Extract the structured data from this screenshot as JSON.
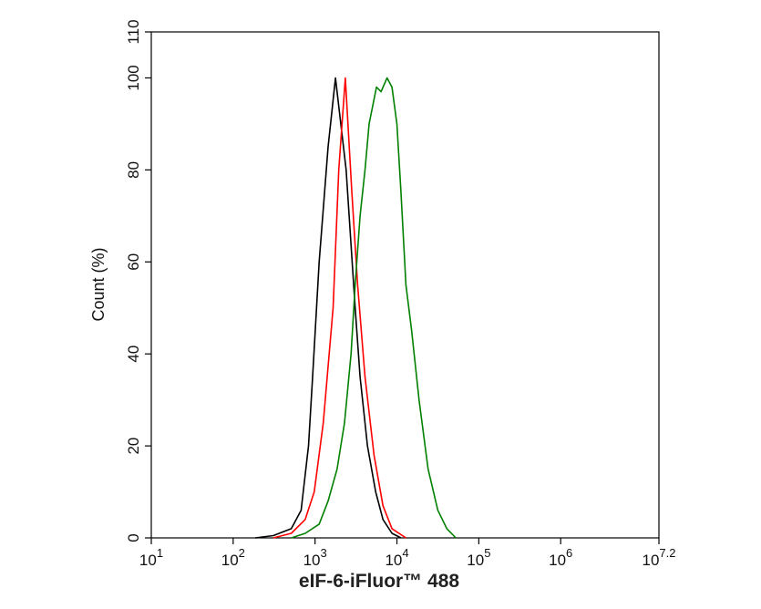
{
  "chart_data": {
    "type": "line",
    "x_scale": "log",
    "xlabel": "eIF-6-iFluor™ 488",
    "ylabel": "Count  (%)",
    "xlim": [
      10,
      15848932
    ],
    "ylim": [
      0,
      110
    ],
    "xticks": [
      {
        "value": 10,
        "label": "10",
        "exponent": "1"
      },
      {
        "value": 100,
        "label": "10",
        "exponent": "2"
      },
      {
        "value": 1000,
        "label": "10",
        "exponent": "3"
      },
      {
        "value": 10000,
        "label": "10",
        "exponent": "4"
      },
      {
        "value": 100000,
        "label": "10",
        "exponent": "5"
      },
      {
        "value": 1000000,
        "label": "10",
        "exponent": "6"
      },
      {
        "value": 15848932,
        "label": "10",
        "exponent": "7.2"
      }
    ],
    "yticks": [
      0,
      20,
      40,
      60,
      80,
      100,
      110
    ],
    "grid": false,
    "series": [
      {
        "color": "#000000",
        "x": [
          186,
          309,
          513,
          676,
          832,
          933,
          1122,
          1445,
          1778,
          2399,
          3090,
          3548,
          4365,
          5495,
          6761,
          8710,
          11220
        ],
        "values": [
          0,
          0.5,
          2,
          6,
          20,
          35,
          60,
          85,
          100,
          80,
          50,
          35,
          20,
          10,
          4,
          1,
          0
        ]
      },
      {
        "color": "#ff0000",
        "x": [
          309,
          513,
          759,
          977,
          1259,
          1660,
          1950,
          2344,
          2818,
          3311,
          4074,
          5248,
          6761,
          8710,
          12883
        ],
        "values": [
          0,
          1,
          4,
          10,
          25,
          50,
          80,
          100,
          75,
          55,
          35,
          18,
          7,
          2,
          0
        ]
      },
      {
        "color": "#008000",
        "x": [
          513,
          759,
          1122,
          1445,
          1862,
          2291,
          2754,
          3090,
          3548,
          4074,
          4571,
          5623,
          6400,
          7586,
          8710,
          10000,
          11220,
          12883,
          15136,
          18621,
          23988,
          31623,
          40738,
          52481
        ],
        "values": [
          0,
          1,
          3,
          8,
          15,
          25,
          40,
          55,
          70,
          80,
          90,
          98,
          97,
          100,
          98,
          90,
          75,
          55,
          45,
          30,
          15,
          6,
          2,
          0
        ]
      }
    ]
  }
}
